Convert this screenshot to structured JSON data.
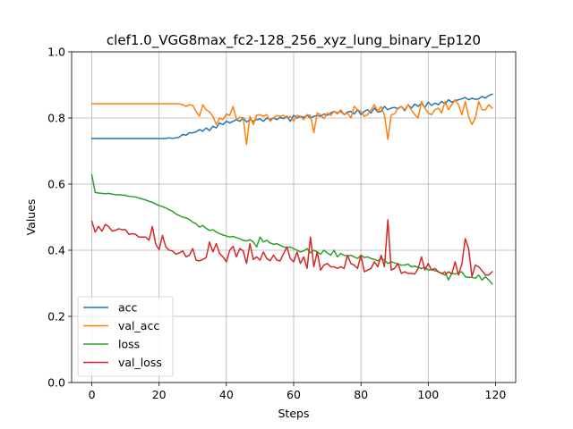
{
  "chart_data": {
    "type": "line",
    "title": "clef1.0_VGG8max_fc2-128_256_xyz_lung_binary_Ep120",
    "xlabel": "Steps",
    "ylabel": "Values",
    "xlim": [
      -6,
      126
    ],
    "ylim": [
      0.0,
      1.0
    ],
    "xticks": [
      0,
      20,
      40,
      60,
      80,
      100,
      120
    ],
    "yticks": [
      0.0,
      0.2,
      0.4,
      0.6,
      0.8,
      1.0
    ],
    "xtick_labels": [
      "0",
      "20",
      "40",
      "60",
      "80",
      "100",
      "120"
    ],
    "ytick_labels": [
      "0.0",
      "0.2",
      "0.4",
      "0.6",
      "0.8",
      "1.0"
    ],
    "grid": true,
    "legend_position": "lower-left",
    "series": [
      {
        "name": "acc",
        "color": "#1f77b4",
        "values": [
          0.738,
          0.738,
          0.738,
          0.738,
          0.738,
          0.738,
          0.738,
          0.738,
          0.738,
          0.738,
          0.738,
          0.738,
          0.738,
          0.738,
          0.738,
          0.738,
          0.738,
          0.738,
          0.738,
          0.738,
          0.738,
          0.738,
          0.738,
          0.74,
          0.738,
          0.74,
          0.742,
          0.75,
          0.748,
          0.755,
          0.755,
          0.758,
          0.765,
          0.76,
          0.77,
          0.762,
          0.775,
          0.77,
          0.785,
          0.78,
          0.79,
          0.785,
          0.79,
          0.795,
          0.79,
          0.8,
          0.788,
          0.795,
          0.79,
          0.795,
          0.797,
          0.79,
          0.8,
          0.795,
          0.8,
          0.795,
          0.802,
          0.798,
          0.805,
          0.79,
          0.808,
          0.8,
          0.805,
          0.802,
          0.808,
          0.8,
          0.805,
          0.808,
          0.805,
          0.812,
          0.808,
          0.815,
          0.82,
          0.815,
          0.82,
          0.81,
          0.818,
          0.82,
          0.812,
          0.825,
          0.81,
          0.82,
          0.825,
          0.815,
          0.83,
          0.818,
          0.82,
          0.835,
          0.825,
          0.83,
          0.832,
          0.828,
          0.835,
          0.822,
          0.84,
          0.83,
          0.842,
          0.835,
          0.845,
          0.832,
          0.848,
          0.838,
          0.845,
          0.84,
          0.85,
          0.842,
          0.855,
          0.848,
          0.852,
          0.855,
          0.858,
          0.862,
          0.855,
          0.86,
          0.856,
          0.858,
          0.865,
          0.86,
          0.868,
          0.872
        ]
      },
      {
        "name": "val_acc",
        "color": "#ff7f0e",
        "values": [
          0.843,
          0.843,
          0.843,
          0.843,
          0.843,
          0.843,
          0.843,
          0.843,
          0.843,
          0.843,
          0.843,
          0.843,
          0.843,
          0.843,
          0.843,
          0.843,
          0.843,
          0.843,
          0.843,
          0.843,
          0.843,
          0.843,
          0.843,
          0.843,
          0.843,
          0.843,
          0.843,
          0.84,
          0.835,
          0.84,
          0.838,
          0.82,
          0.805,
          0.84,
          0.825,
          0.818,
          0.805,
          0.78,
          0.8,
          0.795,
          0.812,
          0.808,
          0.835,
          0.795,
          0.802,
          0.8,
          0.72,
          0.805,
          0.78,
          0.808,
          0.81,
          0.805,
          0.81,
          0.79,
          0.8,
          0.808,
          0.805,
          0.808,
          0.8,
          0.805,
          0.79,
          0.808,
          0.805,
          0.795,
          0.81,
          0.808,
          0.755,
          0.815,
          0.81,
          0.798,
          0.815,
          0.808,
          0.82,
          0.812,
          0.825,
          0.81,
          0.815,
          0.8,
          0.835,
          0.825,
          0.82,
          0.805,
          0.81,
          0.825,
          0.84,
          0.82,
          0.835,
          0.808,
          0.735,
          0.81,
          0.812,
          0.83,
          0.835,
          0.825,
          0.84,
          0.825,
          0.81,
          0.8,
          0.85,
          0.83,
          0.815,
          0.81,
          0.825,
          0.83,
          0.815,
          0.85,
          0.825,
          0.84,
          0.855,
          0.84,
          0.81,
          0.85,
          0.805,
          0.78,
          0.8,
          0.85,
          0.825,
          0.825,
          0.84,
          0.83
        ]
      },
      {
        "name": "loss",
        "color": "#2ca02c",
        "values": [
          0.628,
          0.575,
          0.573,
          0.572,
          0.571,
          0.572,
          0.57,
          0.568,
          0.568,
          0.567,
          0.566,
          0.563,
          0.562,
          0.561,
          0.558,
          0.555,
          0.552,
          0.548,
          0.545,
          0.54,
          0.535,
          0.532,
          0.528,
          0.522,
          0.518,
          0.51,
          0.505,
          0.5,
          0.498,
          0.493,
          0.485,
          0.48,
          0.47,
          0.475,
          0.466,
          0.46,
          0.462,
          0.455,
          0.45,
          0.446,
          0.443,
          0.44,
          0.442,
          0.438,
          0.435,
          0.43,
          0.428,
          0.432,
          0.425,
          0.41,
          0.44,
          0.425,
          0.43,
          0.422,
          0.418,
          0.42,
          0.415,
          0.41,
          0.408,
          0.41,
          0.405,
          0.4,
          0.395,
          0.398,
          0.405,
          0.392,
          0.4,
          0.395,
          0.388,
          0.4,
          0.392,
          0.385,
          0.4,
          0.38,
          0.39,
          0.385,
          0.382,
          0.385,
          0.38,
          0.375,
          0.385,
          0.378,
          0.38,
          0.375,
          0.372,
          0.368,
          0.375,
          0.37,
          0.36,
          0.365,
          0.362,
          0.358,
          0.355,
          0.355,
          0.358,
          0.35,
          0.352,
          0.348,
          0.345,
          0.348,
          0.34,
          0.342,
          0.338,
          0.335,
          0.33,
          0.335,
          0.31,
          0.33,
          0.328,
          0.332,
          0.335,
          0.32,
          0.318,
          0.318,
          0.315,
          0.325,
          0.31,
          0.32,
          0.31,
          0.298
        ]
      },
      {
        "name": "val_loss",
        "color": "#d62728",
        "values": [
          0.488,
          0.455,
          0.472,
          0.458,
          0.478,
          0.472,
          0.458,
          0.46,
          0.465,
          0.462,
          0.462,
          0.448,
          0.45,
          0.448,
          0.44,
          0.44,
          0.44,
          0.43,
          0.472,
          0.418,
          0.402,
          0.445,
          0.41,
          0.4,
          0.398,
          0.388,
          0.392,
          0.398,
          0.38,
          0.385,
          0.405,
          0.37,
          0.368,
          0.372,
          0.378,
          0.425,
          0.395,
          0.42,
          0.39,
          0.38,
          0.365,
          0.4,
          0.412,
          0.38,
          0.405,
          0.398,
          0.36,
          0.42,
          0.372,
          0.38,
          0.37,
          0.395,
          0.375,
          0.368,
          0.385,
          0.37,
          0.368,
          0.39,
          0.41,
          0.375,
          0.365,
          0.395,
          0.36,
          0.38,
          0.345,
          0.44,
          0.35,
          0.395,
          0.34,
          0.355,
          0.36,
          0.35,
          0.35,
          0.345,
          0.35,
          0.345,
          0.385,
          0.36,
          0.355,
          0.345,
          0.385,
          0.335,
          0.34,
          0.345,
          0.365,
          0.35,
          0.385,
          0.35,
          0.492,
          0.34,
          0.345,
          0.36,
          0.33,
          0.335,
          0.33,
          0.33,
          0.328,
          0.345,
          0.38,
          0.34,
          0.36,
          0.34,
          0.345,
          0.335,
          0.33,
          0.325,
          0.335,
          0.328,
          0.365,
          0.325,
          0.358,
          0.435,
          0.405,
          0.32,
          0.355,
          0.35,
          0.338,
          0.325,
          0.325,
          0.335
        ]
      }
    ]
  }
}
